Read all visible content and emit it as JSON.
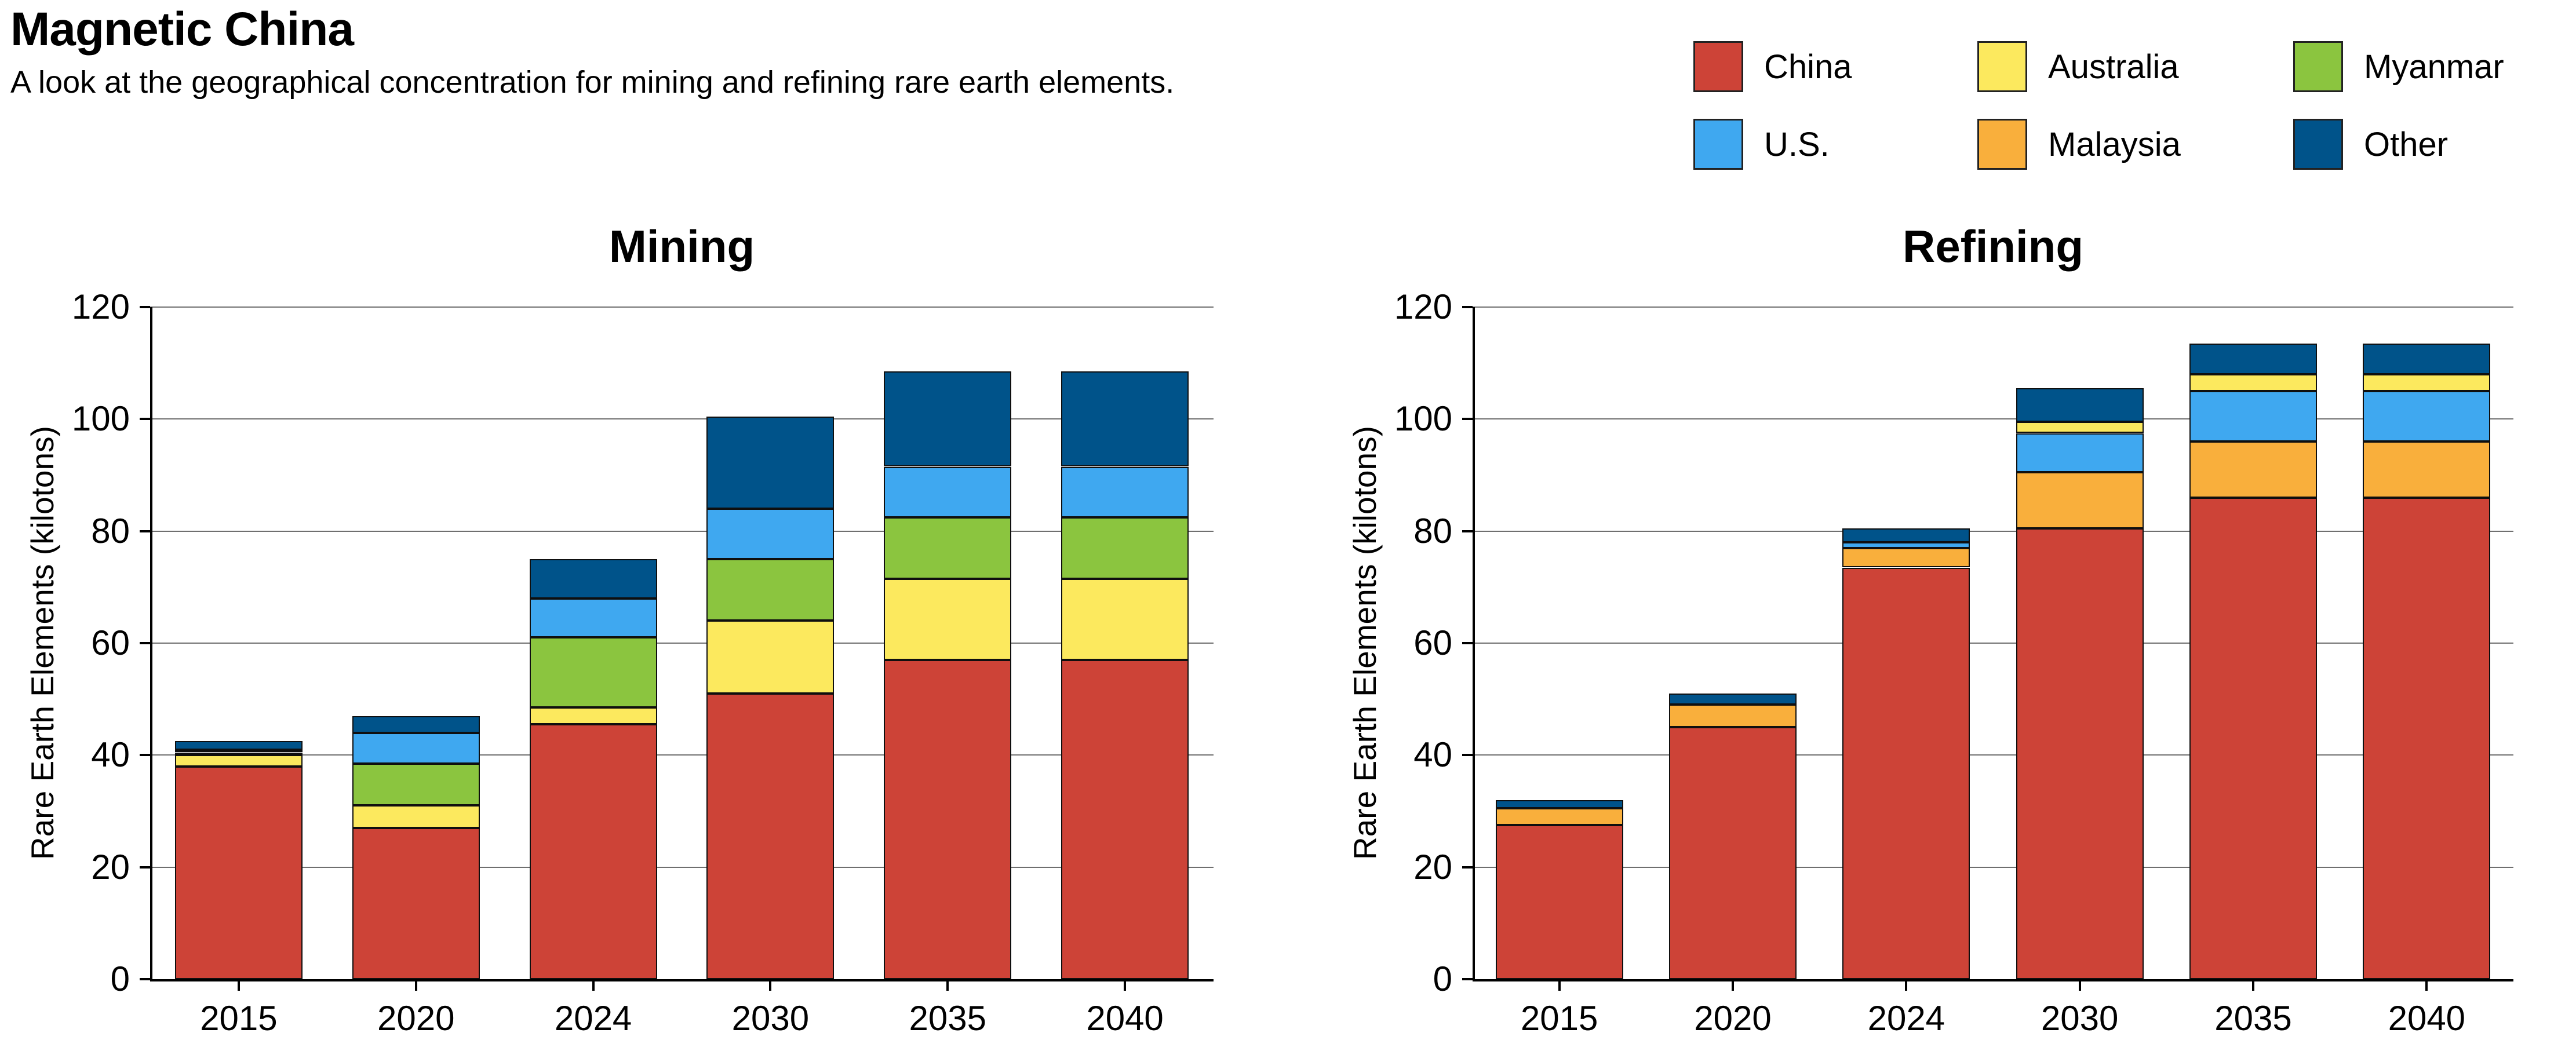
{
  "header": {
    "title": "Magnetic China",
    "subtitle": "A look at the geographical concentration for mining and refining rare earth elements."
  },
  "legend": {
    "items": [
      {
        "label": "China",
        "color": "#cd4337"
      },
      {
        "label": "Australia",
        "color": "#fce95e"
      },
      {
        "label": "Myanmar",
        "color": "#8bc53f"
      },
      {
        "label": "U.S.",
        "color": "#3fa8f0"
      },
      {
        "label": "Malaysia",
        "color": "#f9af3c"
      },
      {
        "label": "Other",
        "color": "#00538a"
      }
    ]
  },
  "axis": {
    "ylabel": "Rare Earth Elements (kilotons)",
    "yticks": [
      0,
      20,
      40,
      60,
      80,
      100,
      120
    ],
    "ylim": [
      0,
      120
    ],
    "categories": [
      "2015",
      "2020",
      "2024",
      "2030",
      "2035",
      "2040"
    ]
  },
  "chart_data": [
    {
      "type": "bar",
      "stacked": true,
      "title": "Mining",
      "ylabel": "Rare Earth Elements (kilotons)",
      "categories": [
        "2015",
        "2020",
        "2024",
        "2030",
        "2035",
        "2040"
      ],
      "ylim": [
        0,
        120
      ],
      "yticks": [
        0,
        20,
        40,
        60,
        80,
        100,
        120
      ],
      "grid": true,
      "legend_position": "figure-top-right",
      "series": [
        {
          "name": "China",
          "color": "#cd4337",
          "values": [
            38,
            27,
            45.5,
            51,
            57,
            57
          ]
        },
        {
          "name": "Australia",
          "color": "#fce95e",
          "values": [
            2,
            4,
            3,
            13,
            14.5,
            14.5
          ]
        },
        {
          "name": "Myanmar",
          "color": "#8bc53f",
          "values": [
            0.5,
            7.5,
            12.5,
            11,
            11,
            11
          ]
        },
        {
          "name": "U.S.",
          "color": "#3fa8f0",
          "values": [
            0.5,
            5.5,
            7,
            9,
            9,
            9
          ]
        },
        {
          "name": "Malaysia",
          "color": "#f9af3c",
          "values": [
            0,
            0,
            0,
            0,
            0,
            0
          ]
        },
        {
          "name": "Other",
          "color": "#00538a",
          "values": [
            1.5,
            3,
            7,
            16.5,
            17,
            17
          ]
        }
      ],
      "totals": [
        42.5,
        47,
        75,
        100.5,
        108.5,
        108.5
      ]
    },
    {
      "type": "bar",
      "stacked": true,
      "title": "Refining",
      "ylabel": "Rare Earth Elements (kilotons)",
      "categories": [
        "2015",
        "2020",
        "2024",
        "2030",
        "2035",
        "2040"
      ],
      "ylim": [
        0,
        120
      ],
      "yticks": [
        0,
        20,
        40,
        60,
        80,
        100,
        120
      ],
      "grid": true,
      "series": [
        {
          "name": "China",
          "color": "#cd4337",
          "values": [
            27.5,
            45,
            73.5,
            80.5,
            86,
            86
          ]
        },
        {
          "name": "Malaysia",
          "color": "#f9af3c",
          "values": [
            3,
            4,
            3.5,
            10,
            10,
            10
          ]
        },
        {
          "name": "U.S.",
          "color": "#3fa8f0",
          "values": [
            0,
            0,
            1,
            7,
            9,
            9
          ]
        },
        {
          "name": "Australia",
          "color": "#fce95e",
          "values": [
            0,
            0,
            0,
            2,
            3,
            3
          ]
        },
        {
          "name": "Myanmar",
          "color": "#8bc53f",
          "values": [
            0,
            0,
            0,
            0,
            0,
            0
          ]
        },
        {
          "name": "Other",
          "color": "#00538a",
          "values": [
            1.5,
            2,
            2.5,
            6,
            5.5,
            5.5
          ]
        }
      ],
      "totals": [
        32,
        51,
        80.5,
        105.5,
        113.5,
        113.5
      ]
    }
  ]
}
